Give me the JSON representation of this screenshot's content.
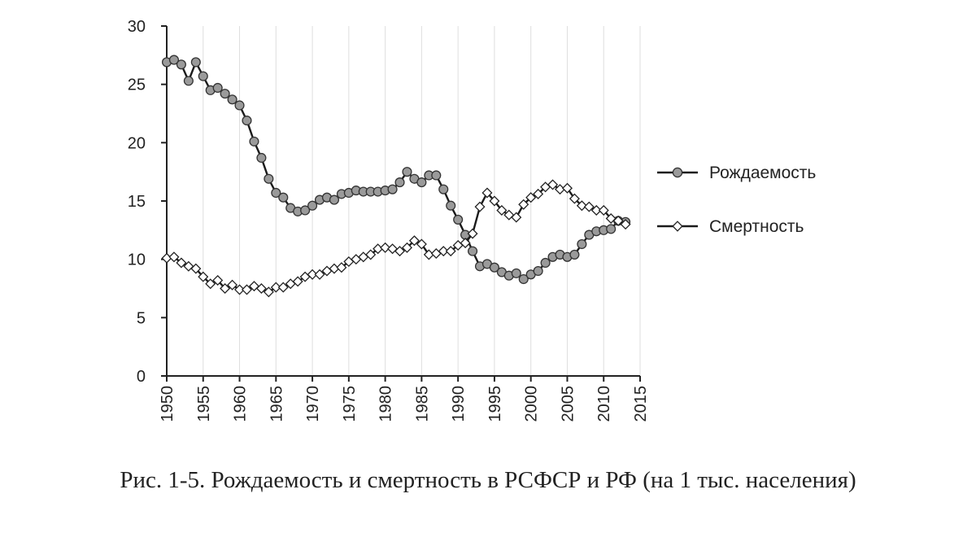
{
  "caption": "Рис. 1-5. Рождаемость и смертность в РСФСР и РФ (на 1 тыс. населения)",
  "chart_data": {
    "type": "line",
    "title": "",
    "xlabel": "",
    "ylabel": "",
    "xlim": [
      1950,
      2015
    ],
    "ylim": [
      0,
      30
    ],
    "x_ticks": [
      1950,
      1955,
      1960,
      1965,
      1970,
      1975,
      1980,
      1985,
      1990,
      1995,
      2000,
      2005,
      2010,
      2015
    ],
    "y_ticks": [
      0,
      5,
      10,
      15,
      20,
      25,
      30
    ],
    "grid": "vertical",
    "legend_position": "right",
    "x": [
      1950,
      1951,
      1952,
      1953,
      1954,
      1955,
      1956,
      1957,
      1958,
      1959,
      1960,
      1961,
      1962,
      1963,
      1964,
      1965,
      1966,
      1967,
      1968,
      1969,
      1970,
      1971,
      1972,
      1973,
      1974,
      1975,
      1976,
      1977,
      1978,
      1979,
      1980,
      1981,
      1982,
      1983,
      1984,
      1985,
      1986,
      1987,
      1988,
      1989,
      1990,
      1991,
      1992,
      1993,
      1994,
      1995,
      1996,
      1997,
      1998,
      1999,
      2000,
      2001,
      2002,
      2003,
      2004,
      2005,
      2006,
      2007,
      2008,
      2009,
      2010,
      2011,
      2012,
      2013
    ],
    "series": [
      {
        "name": "Рождаемость",
        "marker": "circle",
        "color": "#9a9a9a",
        "values": [
          26.9,
          27.1,
          26.7,
          25.3,
          26.9,
          25.7,
          24.5,
          24.7,
          24.2,
          23.7,
          23.2,
          21.9,
          20.1,
          18.7,
          16.9,
          15.7,
          15.3,
          14.4,
          14.1,
          14.2,
          14.6,
          15.1,
          15.3,
          15.1,
          15.6,
          15.7,
          15.9,
          15.8,
          15.8,
          15.8,
          15.9,
          16.0,
          16.6,
          17.5,
          16.9,
          16.6,
          17.2,
          17.2,
          16.0,
          14.6,
          13.4,
          12.1,
          10.7,
          9.4,
          9.6,
          9.3,
          8.9,
          8.6,
          8.8,
          8.3,
          8.7,
          9.0,
          9.7,
          10.2,
          10.4,
          10.2,
          10.4,
          11.3,
          12.1,
          12.4,
          12.5,
          12.6,
          13.3,
          13.2
        ]
      },
      {
        "name": "Смертность",
        "marker": "diamond",
        "color": "#ffffff",
        "values": [
          10.1,
          10.2,
          9.7,
          9.4,
          9.2,
          8.5,
          7.9,
          8.2,
          7.5,
          7.8,
          7.4,
          7.4,
          7.7,
          7.5,
          7.2,
          7.6,
          7.6,
          7.9,
          8.1,
          8.5,
          8.7,
          8.7,
          9.0,
          9.2,
          9.3,
          9.8,
          10.0,
          10.2,
          10.4,
          10.9,
          11.0,
          10.9,
          10.7,
          11.0,
          11.6,
          11.3,
          10.4,
          10.5,
          10.7,
          10.7,
          11.2,
          11.4,
          12.2,
          14.5,
          15.7,
          15.0,
          14.2,
          13.8,
          13.6,
          14.7,
          15.3,
          15.6,
          16.2,
          16.4,
          16.0,
          16.1,
          15.2,
          14.6,
          14.5,
          14.2,
          14.2,
          13.5,
          13.3,
          13.0
        ]
      }
    ]
  }
}
